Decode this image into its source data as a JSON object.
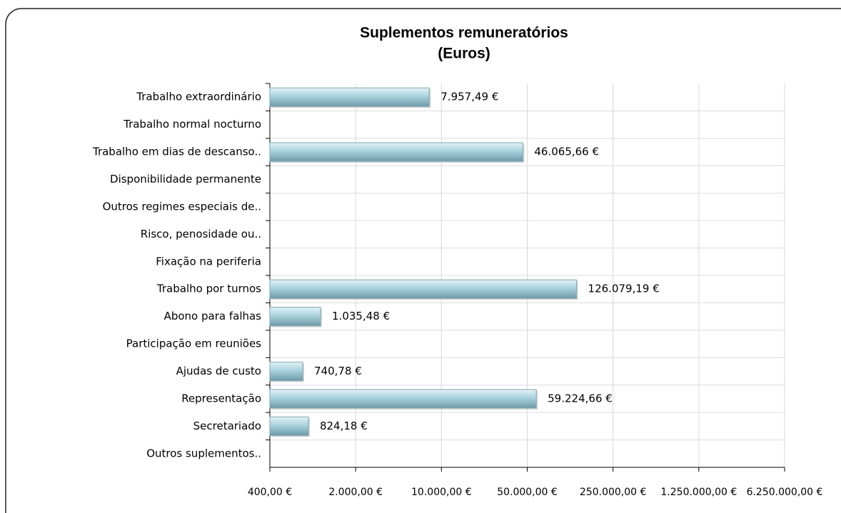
{
  "chart_data": {
    "type": "bar",
    "orientation": "horizontal",
    "title": "Suplementos remuneratórios",
    "subtitle": "(Euros)",
    "categories": [
      "Trabalho extraordinário",
      "Trabalho normal nocturno",
      "Trabalho em dias de descanso..",
      "Disponibilidade permanente",
      "Outros regimes especiais de..",
      "Risco, penosidade ou..",
      "Fixação na periferia",
      "Trabalho por turnos",
      "Abono para falhas",
      "Participação em reuniões",
      "Ajudas de custo",
      "Representação",
      "Secretariado",
      "Outros suplementos.."
    ],
    "values": [
      7957.49,
      null,
      46065.66,
      null,
      null,
      null,
      null,
      126079.19,
      1035.48,
      null,
      740.78,
      59224.66,
      824.18,
      null
    ],
    "value_labels": [
      "7.957,49 €",
      null,
      "46.065,66 €",
      null,
      null,
      null,
      null,
      "126.079,19 €",
      "1.035,48 €",
      null,
      "740,78 €",
      "59.224,66 €",
      "824,18 €",
      null
    ],
    "color": "#a8d2de",
    "xscale": "log",
    "xlim": [
      400,
      6250000
    ],
    "xticks": [
      {
        "value": 400,
        "label": "400,00 €"
      },
      {
        "value": 2000,
        "label": "2.000,00 €"
      },
      {
        "value": 10000,
        "label": "10.000,00 €"
      },
      {
        "value": 50000,
        "label": "50.000,00 €"
      },
      {
        "value": 250000,
        "label": "250.000,00 €"
      },
      {
        "value": 1250000,
        "label": "1.250.000,00 €"
      },
      {
        "value": 6250000,
        "label": "6.250.000,00 €"
      }
    ],
    "grid": true
  }
}
